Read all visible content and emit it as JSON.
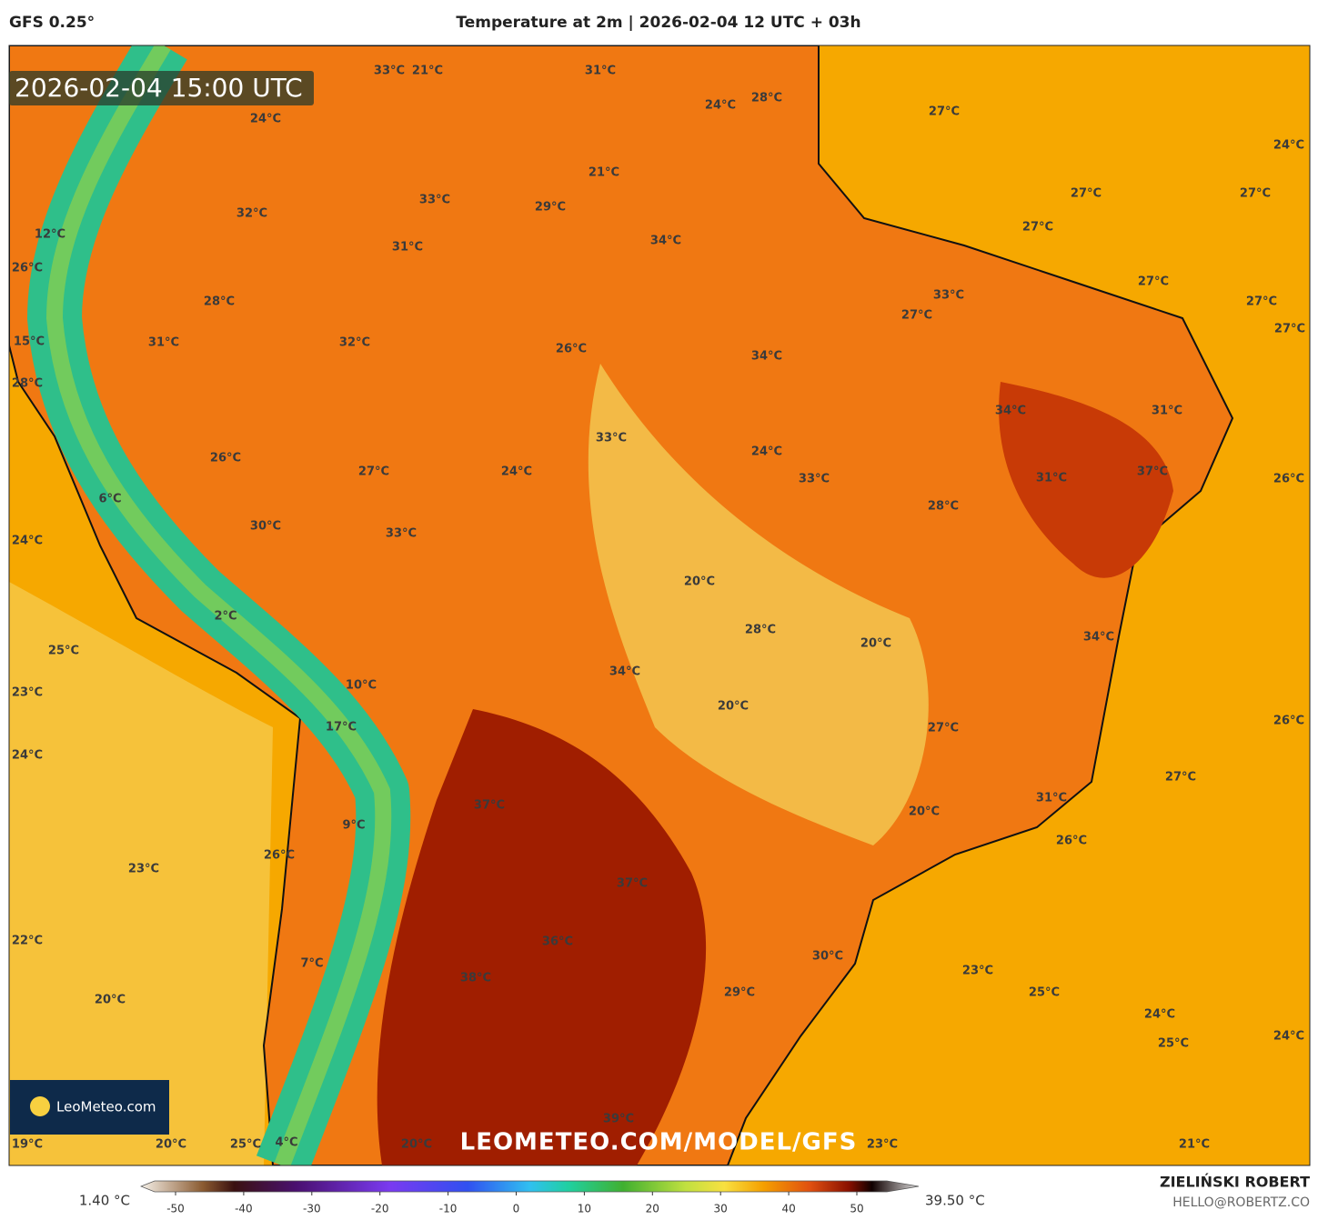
{
  "header": {
    "model": "GFS 0.25°",
    "title": "Temperature at 2m | 2026-02-04 12 UTC + 03h"
  },
  "map": {
    "timestamp": "2026-02-04 15:00 UTC",
    "watermark": "LEOMETEO.COM/MODEL/GFS",
    "logo": "LeoMeteo.com",
    "labels": [
      "33°C",
      "21°C",
      "31°C",
      "28°C",
      "24°C",
      "27°C",
      "24°C",
      "24°C",
      "21°C",
      "27°C",
      "27°C",
      "33°C",
      "29°C",
      "32°C",
      "27°C",
      "12°C",
      "34°C",
      "31°C",
      "26°C",
      "27°C",
      "33°C",
      "28°C",
      "27°C",
      "27°C",
      "27°C",
      "15°C",
      "31°C",
      "32°C",
      "26°C",
      "34°C",
      "28°C",
      "34°C",
      "31°C",
      "33°C",
      "24°C",
      "26°C",
      "27°C",
      "24°C",
      "37°C",
      "31°C",
      "33°C",
      "26°C",
      "6°C",
      "28°C",
      "30°C",
      "33°C",
      "24°C",
      "20°C",
      "2°C",
      "28°C",
      "34°C",
      "20°C",
      "25°C",
      "34°C",
      "10°C",
      "23°C",
      "20°C",
      "26°C",
      "17°C",
      "27°C",
      "24°C",
      "27°C",
      "37°C",
      "31°C",
      "20°C",
      "9°C",
      "26°C",
      "26°C",
      "23°C",
      "37°C",
      "22°C",
      "36°C",
      "30°C",
      "7°C",
      "23°C",
      "38°C",
      "25°C",
      "29°C",
      "20°C",
      "24°C",
      "24°C",
      "25°C",
      "39°C",
      "19°C",
      "20°C",
      "25°C",
      "4°C",
      "20°C",
      "23°C",
      "21°C"
    ]
  },
  "colorbar": {
    "min_label": "1.40 °C",
    "max_label": "39.50 °C",
    "ticks": [
      -50,
      -40,
      -30,
      -20,
      -10,
      0,
      10,
      20,
      30,
      40,
      50
    ]
  },
  "footer": {
    "author": "ZIELIŃSKI ROBERT",
    "contact": "HELLO@ROBERTZ.CO"
  }
}
